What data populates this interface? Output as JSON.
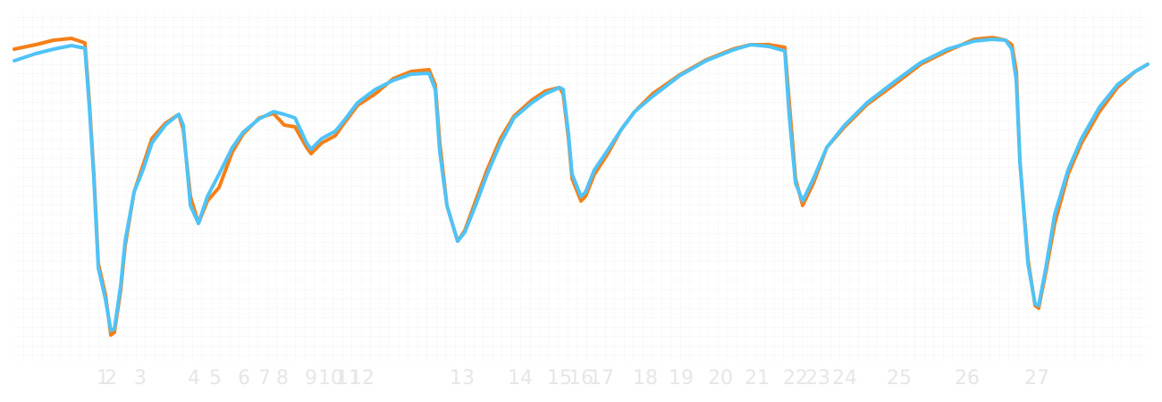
{
  "chart_data": {
    "type": "line",
    "x": [
      16,
      40,
      60,
      80,
      95,
      100,
      105,
      110,
      118,
      124,
      128,
      135,
      140,
      150,
      160,
      170,
      185,
      200,
      205,
      213,
      222,
      232,
      245,
      260,
      272,
      290,
      306,
      318,
      330,
      343,
      348,
      360,
      375,
      385,
      400,
      420,
      440,
      460,
      480,
      487,
      492,
      500,
      512,
      520,
      532,
      545,
      560,
      575,
      595,
      610,
      626,
      630,
      636,
      640,
      650,
      655,
      665,
      680,
      695,
      710,
      730,
      760,
      790,
      820,
      840,
      860,
      878,
      883,
      890,
      898,
      910,
      925,
      945,
      970,
      1000,
      1030,
      1060,
      1090,
      1110,
      1125,
      1132,
      1137,
      1141,
      1150,
      1158,
      1162,
      1170,
      1180,
      1195,
      1210,
      1230,
      1250,
      1270,
      1284
    ],
    "series": [
      {
        "color": "#f57f17",
        "values": [
          345,
          350,
          355,
          357,
          352,
          285,
          205,
          105,
          70,
          25,
          28,
          75,
          125,
          185,
          215,
          245,
          262,
          272,
          255,
          180,
          150,
          175,
          190,
          230,
          250,
          268,
          273,
          260,
          258,
          235,
          228,
          240,
          248,
          262,
          282,
          295,
          312,
          320,
          322,
          305,
          240,
          170,
          130,
          142,
          175,
          210,
          245,
          270,
          288,
          298,
          302,
          295,
          245,
          200,
          175,
          180,
          205,
          228,
          255,
          275,
          295,
          316,
          333,
          345,
          350,
          350,
          347,
          285,
          200,
          170,
          195,
          235,
          258,
          283,
          305,
          328,
          343,
          356,
          358,
          355,
          350,
          320,
          220,
          110,
          58,
          55,
          95,
          150,
          205,
          240,
          275,
          302,
          320,
          328
        ]
      },
      {
        "color": "#4fc3f7",
        "values": [
          332,
          340,
          345,
          349,
          346,
          280,
          200,
          100,
          65,
          30,
          32,
          80,
          130,
          185,
          210,
          240,
          260,
          272,
          260,
          170,
          150,
          180,
          205,
          235,
          252,
          267,
          275,
          272,
          268,
          240,
          233,
          245,
          253,
          265,
          285,
          300,
          310,
          317,
          318,
          300,
          230,
          170,
          130,
          140,
          170,
          205,
          240,
          268,
          285,
          295,
          302,
          300,
          250,
          205,
          180,
          185,
          210,
          232,
          255,
          275,
          292,
          315,
          332,
          344,
          350,
          348,
          343,
          270,
          195,
          175,
          200,
          235,
          260,
          285,
          308,
          330,
          345,
          354,
          356,
          355,
          345,
          310,
          220,
          105,
          60,
          58,
          100,
          160,
          210,
          245,
          280,
          305,
          320,
          328
        ]
      }
    ],
    "xlim": [
      16,
      1284
    ],
    "ylim": [
      0,
      380
    ],
    "xticks": [
      {
        "value": 115,
        "label": "1"
      },
      {
        "value": 124,
        "label": "2"
      },
      {
        "value": 157,
        "label": "3"
      },
      {
        "value": 217,
        "label": "4"
      },
      {
        "value": 241,
        "label": "5"
      },
      {
        "value": 273,
        "label": "6"
      },
      {
        "value": 296,
        "label": "7"
      },
      {
        "value": 316,
        "label": "8"
      },
      {
        "value": 348,
        "label": "9"
      },
      {
        "value": 370,
        "label": "10"
      },
      {
        "value": 390,
        "label": "11"
      },
      {
        "value": 405,
        "label": "12"
      },
      {
        "value": 517,
        "label": "13"
      },
      {
        "value": 582,
        "label": "14"
      },
      {
        "value": 626,
        "label": "15"
      },
      {
        "value": 650,
        "label": "16"
      },
      {
        "value": 673,
        "label": "17"
      },
      {
        "value": 722,
        "label": "18"
      },
      {
        "value": 762,
        "label": "19"
      },
      {
        "value": 806,
        "label": "20"
      },
      {
        "value": 847,
        "label": "21"
      },
      {
        "value": 890,
        "label": "22"
      },
      {
        "value": 915,
        "label": "23"
      },
      {
        "value": 945,
        "label": "24"
      },
      {
        "value": 1006,
        "label": "25"
      },
      {
        "value": 1082,
        "label": "26"
      },
      {
        "value": 1160,
        "label": "27"
      }
    ]
  }
}
